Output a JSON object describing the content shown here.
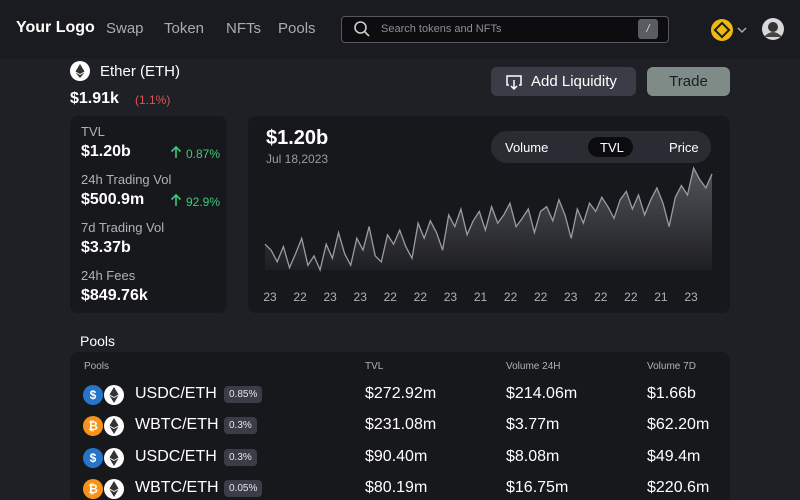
{
  "nav": {
    "logo": "Your Logo",
    "links": [
      "Swap",
      "Token",
      "NFTs",
      "Pools"
    ],
    "search_placeholder": "Search tokens and NFTs",
    "search_key": "/"
  },
  "token": {
    "name": "Ether (ETH)",
    "price": "$1.91k",
    "change": "(1.1%)"
  },
  "actions": {
    "add_liquidity": "Add Liquidity",
    "trade": "Trade"
  },
  "stats": [
    {
      "label": "TVL",
      "value": "$1.20b",
      "change": "0.87%"
    },
    {
      "label": "24h Trading Vol",
      "value": "$500.9m",
      "change": "92.9%"
    },
    {
      "label": "7d Trading Vol",
      "value": "$3.37b"
    },
    {
      "label": "24h Fees",
      "value": "$849.76k"
    }
  ],
  "chart_data": {
    "type": "area",
    "title": "$1.20b",
    "subtitle": "Jul 18,2023",
    "tabs": [
      "Volume",
      "TVL",
      "Price"
    ],
    "active_tab": "TVL",
    "x_labels": [
      "23",
      "22",
      "23",
      "23",
      "22",
      "22",
      "23",
      "21",
      "22",
      "22",
      "23",
      "22",
      "22",
      "21",
      "23"
    ],
    "color": "#9a9ca3",
    "values": [
      30,
      25,
      15,
      28,
      10,
      22,
      35,
      12,
      20,
      8,
      30,
      18,
      40,
      22,
      12,
      35,
      25,
      45,
      20,
      15,
      38,
      30,
      42,
      28,
      18,
      48,
      35,
      50,
      40,
      25,
      55,
      45,
      60,
      38,
      50,
      58,
      42,
      62,
      48,
      55,
      65,
      45,
      52,
      60,
      40,
      58,
      62,
      50,
      68,
      55,
      35,
      60,
      48,
      65,
      58,
      70,
      62,
      52,
      68,
      75,
      60,
      72,
      55,
      68,
      78,
      65,
      45,
      70,
      80,
      72,
      95,
      85,
      78,
      90
    ]
  },
  "pools": {
    "title": "Pools",
    "columns": [
      "Pools",
      "TVL",
      "Volume 24H",
      "Volume 7D"
    ],
    "rows": [
      {
        "pair": "USDC/ETH",
        "fee": "0.85%",
        "tvl": "$272.92m",
        "vol24": "$214.06m",
        "vol7": "$1.66b"
      },
      {
        "pair": "WBTC/ETH",
        "fee": "0.3%",
        "tvl": "$231.08m",
        "vol24": "$3.77m",
        "vol7": "$62.20m"
      },
      {
        "pair": "USDC/ETH",
        "fee": "0.3%",
        "tvl": "$90.40m",
        "vol24": "$8.08m",
        "vol7": "$49.4m"
      },
      {
        "pair": "WBTC/ETH",
        "fee": "0.05%",
        "tvl": "$80.19m",
        "vol24": "$16.75m",
        "vol7": "$220.6m"
      }
    ]
  }
}
